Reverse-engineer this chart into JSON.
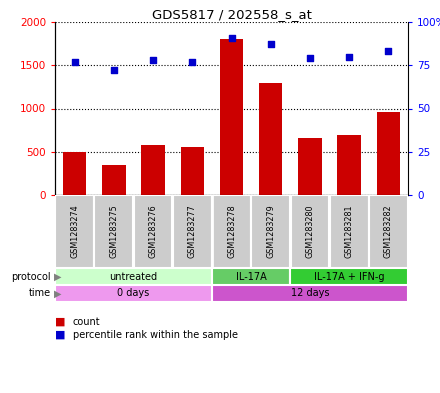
{
  "title": "GDS5817 / 202558_s_at",
  "samples": [
    "GSM1283274",
    "GSM1283275",
    "GSM1283276",
    "GSM1283277",
    "GSM1283278",
    "GSM1283279",
    "GSM1283280",
    "GSM1283281",
    "GSM1283282"
  ],
  "counts": [
    500,
    350,
    580,
    555,
    1800,
    1300,
    660,
    695,
    960
  ],
  "percentiles": [
    77,
    72,
    78,
    77,
    91,
    87,
    79,
    80,
    83
  ],
  "bar_color": "#cc0000",
  "dot_color": "#0000cc",
  "ylim_left": [
    0,
    2000
  ],
  "ylim_right": [
    0,
    100
  ],
  "yticks_left": [
    0,
    500,
    1000,
    1500,
    2000
  ],
  "ytick_labels_left": [
    "0",
    "500",
    "1000",
    "1500",
    "2000"
  ],
  "ytick_labels_right": [
    "0",
    "25",
    "50",
    "75",
    "100%"
  ],
  "protocol_groups": [
    {
      "label": "untreated",
      "start": 0,
      "end": 4,
      "color": "#ccffcc"
    },
    {
      "label": "IL-17A",
      "start": 4,
      "end": 6,
      "color": "#66cc66"
    },
    {
      "label": "IL-17A + IFN-g",
      "start": 6,
      "end": 9,
      "color": "#33cc33"
    }
  ],
  "time_groups": [
    {
      "label": "0 days",
      "start": 0,
      "end": 4,
      "color": "#ee99ee"
    },
    {
      "label": "12 days",
      "start": 4,
      "end": 9,
      "color": "#cc55cc"
    }
  ],
  "sample_box_color": "#cccccc",
  "protocol_left_label": "protocol",
  "time_left_label": "time",
  "legend_count": "count",
  "legend_pct": "percentile rank within the sample"
}
